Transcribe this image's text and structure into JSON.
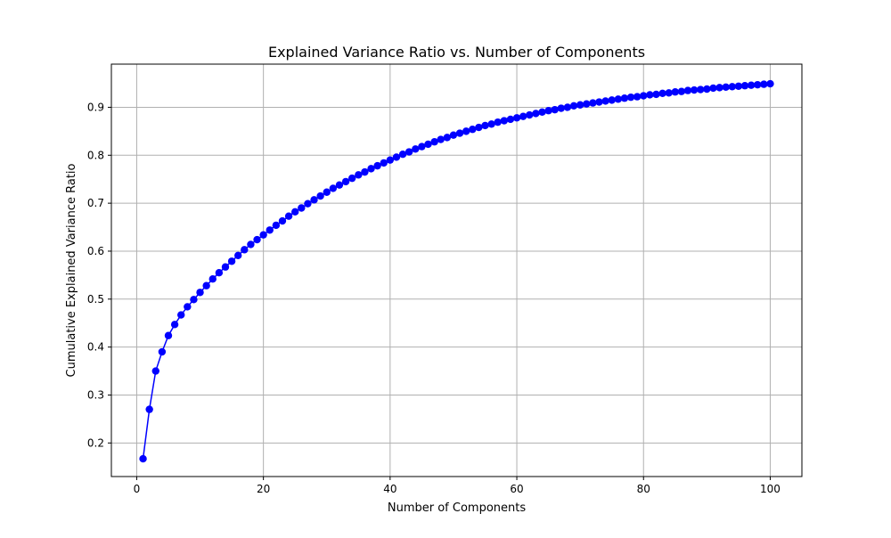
{
  "chart_data": {
    "type": "line",
    "title": "Explained Variance Ratio vs. Number of Components",
    "xlabel": "Number of Components",
    "ylabel": "Cumulative Explained Variance Ratio",
    "xlim": [
      -4,
      105
    ],
    "ylim": [
      0.13,
      0.99
    ],
    "xticks": [
      0,
      20,
      40,
      60,
      80,
      100
    ],
    "yticks": [
      0.2,
      0.3,
      0.4,
      0.5,
      0.6,
      0.7,
      0.8,
      0.9
    ],
    "xtick_labels": [
      "0",
      "20",
      "40",
      "60",
      "80",
      "100"
    ],
    "ytick_labels": [
      "0.2",
      "0.3",
      "0.4",
      "0.5",
      "0.6",
      "0.7",
      "0.8",
      "0.9"
    ],
    "grid": true,
    "line_color": "#0000ff",
    "marker": "circle",
    "series": [
      {
        "x": [
          1,
          2,
          3,
          4,
          5,
          6,
          7,
          8,
          9,
          10,
          11,
          12,
          13,
          14,
          15,
          16,
          17,
          18,
          19,
          20,
          21,
          22,
          23,
          24,
          25,
          26,
          27,
          28,
          29,
          30,
          31,
          32,
          33,
          34,
          35,
          36,
          37,
          38,
          39,
          40,
          41,
          42,
          43,
          44,
          45,
          46,
          47,
          48,
          49,
          50,
          51,
          52,
          53,
          54,
          55,
          56,
          57,
          58,
          59,
          60,
          61,
          62,
          63,
          64,
          65,
          66,
          67,
          68,
          69,
          70,
          71,
          72,
          73,
          74,
          75,
          76,
          77,
          78,
          79,
          80,
          81,
          82,
          83,
          84,
          85,
          86,
          87,
          88,
          89,
          90,
          91,
          92,
          93,
          94,
          95,
          96,
          97,
          98,
          99,
          100
        ],
        "values": [
          0.167,
          0.27,
          0.35,
          0.39,
          0.424,
          0.447,
          0.467,
          0.484,
          0.499,
          0.514,
          0.528,
          0.542,
          0.555,
          0.567,
          0.579,
          0.591,
          0.603,
          0.614,
          0.624,
          0.634,
          0.644,
          0.654,
          0.663,
          0.673,
          0.682,
          0.69,
          0.699,
          0.707,
          0.715,
          0.723,
          0.731,
          0.738,
          0.745,
          0.752,
          0.759,
          0.765,
          0.772,
          0.778,
          0.784,
          0.79,
          0.796,
          0.802,
          0.807,
          0.813,
          0.818,
          0.823,
          0.828,
          0.833,
          0.837,
          0.842,
          0.846,
          0.85,
          0.854,
          0.858,
          0.862,
          0.865,
          0.869,
          0.872,
          0.875,
          0.878,
          0.881,
          0.884,
          0.887,
          0.89,
          0.893,
          0.895,
          0.898,
          0.9,
          0.903,
          0.905,
          0.907,
          0.909,
          0.911,
          0.913,
          0.915,
          0.917,
          0.919,
          0.921,
          0.922,
          0.924,
          0.926,
          0.927,
          0.929,
          0.93,
          0.932,
          0.933,
          0.935,
          0.936,
          0.937,
          0.938,
          0.94,
          0.941,
          0.942,
          0.943,
          0.944,
          0.945,
          0.946,
          0.947,
          0.948,
          0.949
        ]
      }
    ]
  }
}
